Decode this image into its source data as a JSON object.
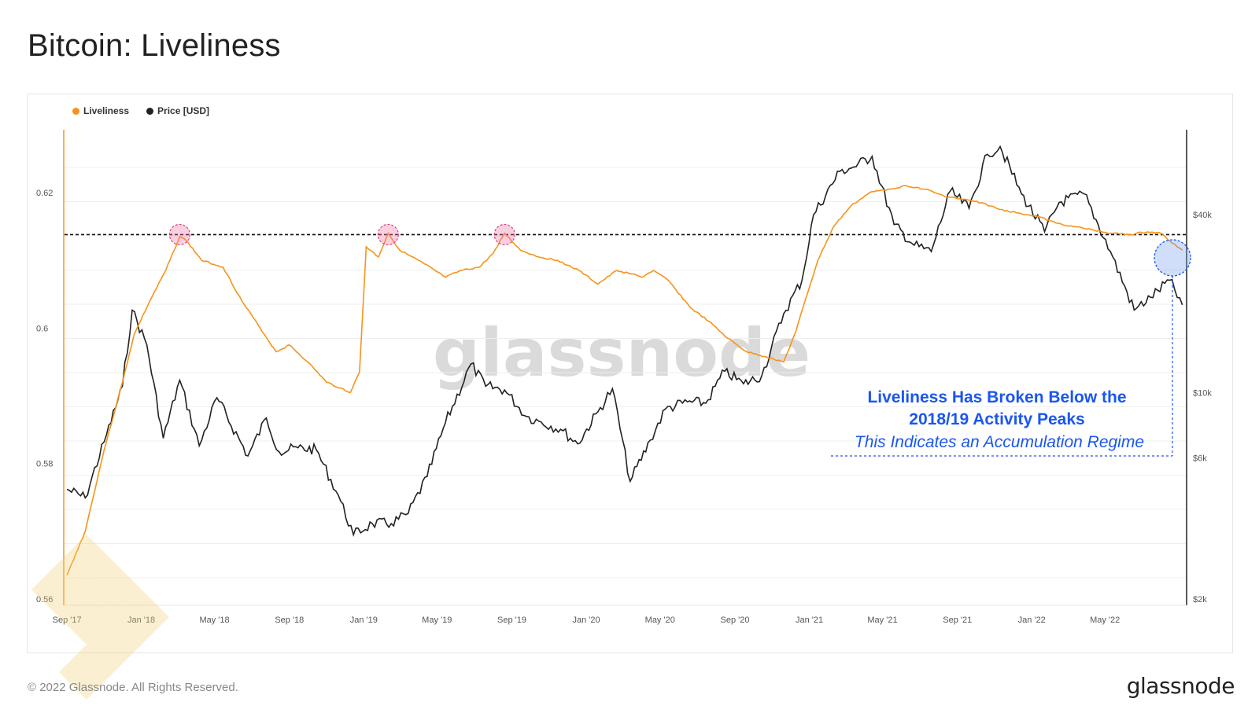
{
  "title": "Bitcoin: Liveliness",
  "legend": [
    {
      "label": "Liveliness",
      "color": "#f7931a"
    },
    {
      "label": "Price [USD]",
      "color": "#222222"
    }
  ],
  "watermark": "glassnode",
  "footer": {
    "copyright": "© 2022 Glassnode. All Rights Reserved.",
    "logo": "glassnode"
  },
  "annotation": {
    "line1": "Liveliness Has Broken Below the",
    "line2": "2018/19 Activity Peaks",
    "line3": "This Indicates an Accumulation Regime",
    "color": "#1a56f0"
  },
  "chart_data": {
    "type": "line",
    "x_ticks": [
      "Sep '17",
      "Jan '18",
      "May '18",
      "Sep '18",
      "Jan '19",
      "May '19",
      "Sep '19",
      "Jan '20",
      "May '20",
      "Sep '20",
      "Jan '21",
      "May '21",
      "Sep '21",
      "Jan '22",
      "May '22"
    ],
    "y_left_ticks": [
      "0.62",
      "0.6",
      "0.58",
      "0.56"
    ],
    "y_right_ticks": [
      "$40k",
      "$10k",
      "$6k",
      "$2k"
    ],
    "y_left_range": [
      0.56,
      0.625
    ],
    "y_right_scale": "log",
    "grid": true,
    "legend_position": "top-left",
    "reference_line": {
      "value": 0.6138,
      "label": "2018/19 Activity Peaks"
    },
    "peak_markers": [
      "Mar '18",
      "Feb '19",
      "Aug '19"
    ],
    "series": [
      {
        "name": "Liveliness",
        "axis": "left",
        "color": "#f7931a",
        "points": [
          [
            "2017-09-01",
            0.5635
          ],
          [
            "2017-10-01",
            0.57
          ],
          [
            "2017-11-01",
            0.582
          ],
          [
            "2017-12-01",
            0.592
          ],
          [
            "2017-12-20",
            0.599
          ],
          [
            "2018-01-15",
            0.604
          ],
          [
            "2018-02-10",
            0.6085
          ],
          [
            "2018-03-05",
            0.6135
          ],
          [
            "2018-03-15",
            0.613
          ],
          [
            "2018-04-10",
            0.61
          ],
          [
            "2018-05-15",
            0.609
          ],
          [
            "2018-06-15",
            0.604
          ],
          [
            "2018-07-15",
            0.6
          ],
          [
            "2018-08-10",
            0.5965
          ],
          [
            "2018-09-01",
            0.5975
          ],
          [
            "2018-10-01",
            0.595
          ],
          [
            "2018-11-01",
            0.592
          ],
          [
            "2018-12-10",
            0.5905
          ],
          [
            "2018-12-25",
            0.5935
          ],
          [
            "2019-01-05",
            0.612
          ],
          [
            "2019-01-25",
            0.6105
          ],
          [
            "2019-02-10",
            0.614
          ],
          [
            "2019-03-01",
            0.6115
          ],
          [
            "2019-04-10",
            0.6095
          ],
          [
            "2019-05-15",
            0.6075
          ],
          [
            "2019-06-10",
            0.6085
          ],
          [
            "2019-07-10",
            0.609
          ],
          [
            "2019-08-01",
            0.611
          ],
          [
            "2019-08-20",
            0.614
          ],
          [
            "2019-09-15",
            0.6115
          ],
          [
            "2019-10-15",
            0.6105
          ],
          [
            "2019-11-15",
            0.61
          ],
          [
            "2019-12-20",
            0.6085
          ],
          [
            "2020-01-20",
            0.6065
          ],
          [
            "2020-02-20",
            0.6085
          ],
          [
            "2020-03-15",
            0.608
          ],
          [
            "2020-04-01",
            0.6075
          ],
          [
            "2020-04-20",
            0.6085
          ],
          [
            "2020-05-15",
            0.607
          ],
          [
            "2020-06-20",
            0.603
          ],
          [
            "2020-07-20",
            0.601
          ],
          [
            "2020-08-20",
            0.5985
          ],
          [
            "2020-09-20",
            0.5965
          ],
          [
            "2020-10-20",
            0.5958
          ],
          [
            "2020-11-20",
            0.595
          ],
          [
            "2020-12-10",
            0.5995
          ],
          [
            "2020-12-25",
            0.604
          ],
          [
            "2021-01-15",
            0.61
          ],
          [
            "2021-02-10",
            0.615
          ],
          [
            "2021-03-10",
            0.618
          ],
          [
            "2021-04-10",
            0.62
          ],
          [
            "2021-05-10",
            0.6205
          ],
          [
            "2021-06-10",
            0.621
          ],
          [
            "2021-07-10",
            0.6205
          ],
          [
            "2021-08-10",
            0.6195
          ],
          [
            "2021-09-10",
            0.619
          ],
          [
            "2021-10-10",
            0.6185
          ],
          [
            "2021-11-10",
            0.6175
          ],
          [
            "2021-12-10",
            0.617
          ],
          [
            "2022-01-10",
            0.6165
          ],
          [
            "2022-02-10",
            0.6155
          ],
          [
            "2022-03-10",
            0.615
          ],
          [
            "2022-04-10",
            0.6145
          ],
          [
            "2022-05-10",
            0.614
          ],
          [
            "2022-06-10",
            0.6138
          ],
          [
            "2022-07-10",
            0.6142
          ],
          [
            "2022-08-01",
            0.614
          ],
          [
            "2022-08-20",
            0.6125
          ],
          [
            "2022-09-05",
            0.6115
          ]
        ]
      },
      {
        "name": "Price [USD]",
        "axis": "right",
        "color": "#222222",
        "points": [
          [
            "2017-09-01",
            4700
          ],
          [
            "2017-10-01",
            4400
          ],
          [
            "2017-11-01",
            6800
          ],
          [
            "2017-12-01",
            10500
          ],
          [
            "2017-12-17",
            19000
          ],
          [
            "2018-01-10",
            14500
          ],
          [
            "2018-02-06",
            7000
          ],
          [
            "2018-03-05",
            11000
          ],
          [
            "2018-04-06",
            6600
          ],
          [
            "2018-05-05",
            9600
          ],
          [
            "2018-06-25",
            6100
          ],
          [
            "2018-07-25",
            8200
          ],
          [
            "2018-08-15",
            6300
          ],
          [
            "2018-09-15",
            6500
          ],
          [
            "2018-10-15",
            6400
          ],
          [
            "2018-11-20",
            4500
          ],
          [
            "2018-12-15",
            3300
          ],
          [
            "2019-01-15",
            3600
          ],
          [
            "2019-02-15",
            3600
          ],
          [
            "2019-03-15",
            3900
          ],
          [
            "2019-04-15",
            5200
          ],
          [
            "2019-05-15",
            7900
          ],
          [
            "2019-06-26",
            12500
          ],
          [
            "2019-07-20",
            10500
          ],
          [
            "2019-08-20",
            10200
          ],
          [
            "2019-09-25",
            8300
          ],
          [
            "2019-10-15",
            8000
          ],
          [
            "2019-11-20",
            7500
          ],
          [
            "2019-12-18",
            6700
          ],
          [
            "2020-01-20",
            8600
          ],
          [
            "2020-02-13",
            10300
          ],
          [
            "2020-03-13",
            5000
          ],
          [
            "2020-04-15",
            6900
          ],
          [
            "2020-05-10",
            8800
          ],
          [
            "2020-06-15",
            9300
          ],
          [
            "2020-07-15",
            9200
          ],
          [
            "2020-08-15",
            11800
          ],
          [
            "2020-09-15",
            10700
          ],
          [
            "2020-10-15",
            11400
          ],
          [
            "2020-11-20",
            18500
          ],
          [
            "2020-12-20",
            24000
          ],
          [
            "2021-01-08",
            40000
          ],
          [
            "2021-02-20",
            56000
          ],
          [
            "2021-03-15",
            58000
          ],
          [
            "2021-04-14",
            63000
          ],
          [
            "2021-05-20",
            37000
          ],
          [
            "2021-06-22",
            31500
          ],
          [
            "2021-07-20",
            30000
          ],
          [
            "2021-08-20",
            48000
          ],
          [
            "2021-09-20",
            42000
          ],
          [
            "2021-10-20",
            64000
          ],
          [
            "2021-11-10",
            68000
          ],
          [
            "2021-12-15",
            47000
          ],
          [
            "2022-01-22",
            35000
          ],
          [
            "2022-02-15",
            44000
          ],
          [
            "2022-03-28",
            47000
          ],
          [
            "2022-05-10",
            30000
          ],
          [
            "2022-06-18",
            19000
          ],
          [
            "2022-07-15",
            21000
          ],
          [
            "2022-08-15",
            24000
          ],
          [
            "2022-09-05",
            19800
          ]
        ]
      }
    ]
  }
}
